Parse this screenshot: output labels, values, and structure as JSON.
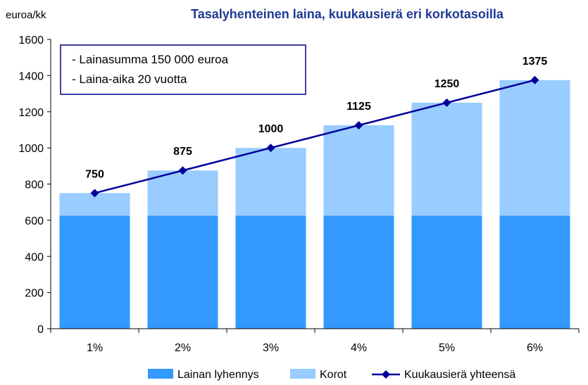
{
  "chart_data": {
    "type": "bar",
    "stacked": true,
    "title": "Tasalyhenteinen laina, kuukausierä eri korkotasoilla",
    "ylabel": "euroa/kk",
    "xlabel": "",
    "ylim": [
      0,
      1600
    ],
    "yticks": [
      "0",
      "200",
      "400",
      "600",
      "800",
      "1000",
      "1200",
      "1400",
      "1600"
    ],
    "categories": [
      "1%",
      "2%",
      "3%",
      "4%",
      "5%",
      "6%"
    ],
    "series": [
      {
        "name": "Lainan lyhennys",
        "type": "bar",
        "color": "#3399FF",
        "values": [
          625,
          625,
          625,
          625,
          625,
          625
        ]
      },
      {
        "name": "Korot",
        "type": "bar",
        "color": "#99CCFF",
        "values": [
          125,
          250,
          375,
          500,
          625,
          750
        ]
      },
      {
        "name": "Kuukausierä yhteensä",
        "type": "line",
        "marker": "diamond",
        "color": "#000099",
        "values": [
          750,
          875,
          1000,
          1125,
          1250,
          1375
        ]
      }
    ],
    "data_labels": [
      "750",
      "875",
      "1000",
      "1125",
      "1250",
      "1375"
    ],
    "annotation_box": {
      "lines": [
        "- Lainasumma 150 000 euroa",
        "- Laina-aika 20 vuotta"
      ],
      "border_color": "#000080"
    },
    "grid": false,
    "legend_position": "bottom"
  }
}
